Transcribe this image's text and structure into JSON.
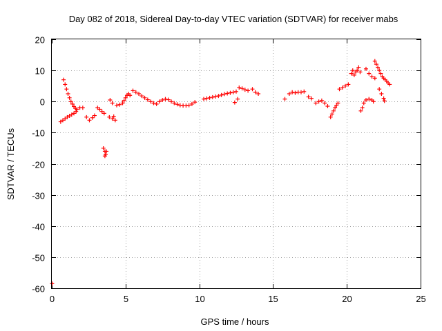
{
  "chart_data": {
    "type": "scatter",
    "title": "Day 082 of 2018, Sidereal Day-to-day VTEC variation (SDTVAR) for receiver mabs",
    "xlabel": "GPS time / hours",
    "ylabel": "SDTVAR / TECUs",
    "xlim": [
      0,
      25
    ],
    "ylim": [
      -60,
      20
    ],
    "xticks": [
      0,
      5,
      10,
      15,
      20,
      25
    ],
    "yticks": [
      -60,
      -50,
      -40,
      -30,
      -20,
      -10,
      0,
      10,
      20
    ],
    "grid": true,
    "marker": "plus",
    "color": "#ff0000",
    "series": [
      {
        "name": "SDTVAR",
        "points": [
          [
            0.02,
            -58.5
          ],
          [
            0.6,
            -6.5
          ],
          [
            0.75,
            -6.0
          ],
          [
            0.9,
            -5.5
          ],
          [
            1.05,
            -5.0
          ],
          [
            1.2,
            -4.6
          ],
          [
            1.35,
            -4.2
          ],
          [
            1.5,
            -3.8
          ],
          [
            1.65,
            -3.2
          ],
          [
            0.8,
            7.0
          ],
          [
            0.9,
            5.5
          ],
          [
            1.0,
            4.0
          ],
          [
            1.1,
            2.5
          ],
          [
            1.2,
            1.2
          ],
          [
            1.3,
            0.0
          ],
          [
            1.4,
            -0.8
          ],
          [
            1.5,
            -1.6
          ],
          [
            1.6,
            -2.2
          ],
          [
            1.7,
            -2.5
          ],
          [
            1.9,
            -2.0
          ],
          [
            2.1,
            -2.0
          ],
          [
            2.35,
            -5.0
          ],
          [
            2.55,
            -6.0
          ],
          [
            2.75,
            -5.2
          ],
          [
            2.9,
            -4.5
          ],
          [
            3.1,
            -2.0
          ],
          [
            3.25,
            -2.5
          ],
          [
            3.4,
            -3.2
          ],
          [
            3.55,
            -3.8
          ],
          [
            3.5,
            -15.0
          ],
          [
            3.6,
            -16.0
          ],
          [
            3.65,
            -17.0
          ],
          [
            3.7,
            -16.0
          ],
          [
            3.6,
            -17.5
          ],
          [
            3.9,
            -5.0
          ],
          [
            4.1,
            -5.5
          ],
          [
            4.3,
            -6.0
          ],
          [
            4.2,
            -4.8
          ],
          [
            3.95,
            0.5
          ],
          [
            4.1,
            -0.5
          ],
          [
            4.4,
            -1.2
          ],
          [
            4.6,
            -1.0
          ],
          [
            4.8,
            -0.5
          ],
          [
            4.9,
            0.3
          ],
          [
            5.0,
            1.2
          ],
          [
            5.1,
            2.0
          ],
          [
            5.2,
            2.5
          ],
          [
            5.3,
            2.0
          ],
          [
            5.5,
            3.5
          ],
          [
            5.7,
            3.0
          ],
          [
            5.9,
            2.5
          ],
          [
            6.1,
            1.8
          ],
          [
            6.3,
            1.2
          ],
          [
            6.5,
            0.6
          ],
          [
            6.7,
            0.0
          ],
          [
            6.9,
            -0.5
          ],
          [
            7.1,
            -0.8
          ],
          [
            7.3,
            0.0
          ],
          [
            7.5,
            0.5
          ],
          [
            7.7,
            0.8
          ],
          [
            7.9,
            0.6
          ],
          [
            8.1,
            0.0
          ],
          [
            8.3,
            -0.5
          ],
          [
            8.5,
            -0.9
          ],
          [
            8.7,
            -1.2
          ],
          [
            8.9,
            -1.3
          ],
          [
            9.1,
            -1.3
          ],
          [
            9.3,
            -1.2
          ],
          [
            9.5,
            -0.8
          ],
          [
            9.7,
            -0.2
          ],
          [
            10.3,
            0.8
          ],
          [
            10.5,
            1.0
          ],
          [
            10.7,
            1.2
          ],
          [
            10.9,
            1.4
          ],
          [
            11.1,
            1.6
          ],
          [
            11.3,
            1.8
          ],
          [
            11.5,
            2.1
          ],
          [
            11.7,
            2.4
          ],
          [
            11.9,
            2.6
          ],
          [
            12.1,
            2.8
          ],
          [
            12.3,
            3.0
          ],
          [
            12.5,
            3.2
          ],
          [
            12.4,
            -0.3
          ],
          [
            12.6,
            0.8
          ],
          [
            12.7,
            4.5
          ],
          [
            12.9,
            4.2
          ],
          [
            13.1,
            3.8
          ],
          [
            13.3,
            3.5
          ],
          [
            13.6,
            4.0
          ],
          [
            13.8,
            3.0
          ],
          [
            14.0,
            2.5
          ],
          [
            15.8,
            0.8
          ],
          [
            16.1,
            2.5
          ],
          [
            16.3,
            3.0
          ],
          [
            16.5,
            2.8
          ],
          [
            16.7,
            3.0
          ],
          [
            16.9,
            3.0
          ],
          [
            17.1,
            3.2
          ],
          [
            17.4,
            1.5
          ],
          [
            17.6,
            1.0
          ],
          [
            17.9,
            -0.5
          ],
          [
            18.1,
            0.0
          ],
          [
            18.3,
            0.3
          ],
          [
            18.5,
            -0.5
          ],
          [
            18.7,
            -1.5
          ],
          [
            18.9,
            -5.0
          ],
          [
            19.0,
            -4.0
          ],
          [
            19.1,
            -3.0
          ],
          [
            19.2,
            -2.0
          ],
          [
            19.3,
            -1.2
          ],
          [
            19.4,
            -0.5
          ],
          [
            19.5,
            4.0
          ],
          [
            19.7,
            4.5
          ],
          [
            19.9,
            5.0
          ],
          [
            20.1,
            5.5
          ],
          [
            20.3,
            9.0
          ],
          [
            20.4,
            10.0
          ],
          [
            20.5,
            8.5
          ],
          [
            20.6,
            9.5
          ],
          [
            20.7,
            10.0
          ],
          [
            20.8,
            11.0
          ],
          [
            20.9,
            9.5
          ],
          [
            20.95,
            -3.0
          ],
          [
            21.05,
            -2.0
          ],
          [
            21.15,
            -0.5
          ],
          [
            21.3,
            0.5
          ],
          [
            21.5,
            0.8
          ],
          [
            21.7,
            0.5
          ],
          [
            21.8,
            0.0
          ],
          [
            21.3,
            10.5
          ],
          [
            21.5,
            9.0
          ],
          [
            21.7,
            8.0
          ],
          [
            21.9,
            7.5
          ],
          [
            21.9,
            13.0
          ],
          [
            22.0,
            12.0
          ],
          [
            22.1,
            11.0
          ],
          [
            22.2,
            10.0
          ],
          [
            22.3,
            9.0
          ],
          [
            22.4,
            8.0
          ],
          [
            22.5,
            7.5
          ],
          [
            22.6,
            7.0
          ],
          [
            22.7,
            6.5
          ],
          [
            22.8,
            6.0
          ],
          [
            22.9,
            5.5
          ],
          [
            22.2,
            4.0
          ],
          [
            22.35,
            2.5
          ],
          [
            22.5,
            1.0
          ],
          [
            22.55,
            0.2
          ]
        ]
      }
    ]
  }
}
